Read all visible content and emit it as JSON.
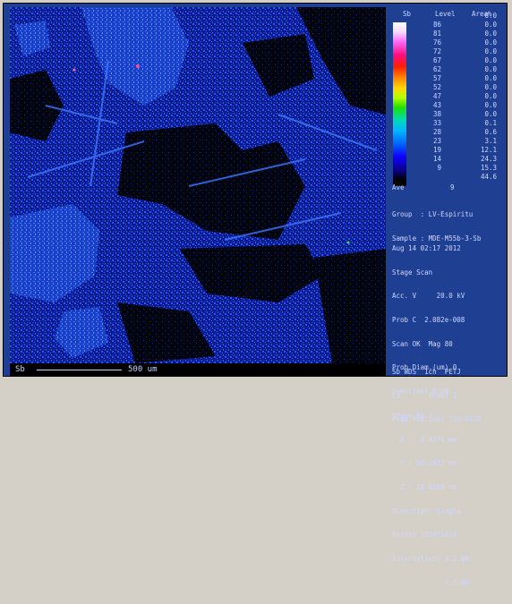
{
  "colorbar": {
    "element_label": "Sb",
    "level_header": "Level",
    "area_header": "Area%",
    "rows": [
      {
        "level": "",
        "area": "0.0"
      },
      {
        "level": "86",
        "area": "0.0"
      },
      {
        "level": "81",
        "area": "0.0"
      },
      {
        "level": "76",
        "area": "0.0"
      },
      {
        "level": "72",
        "area": "0.0"
      },
      {
        "level": "67",
        "area": "0.0"
      },
      {
        "level": "62",
        "area": "0.0"
      },
      {
        "level": "57",
        "area": "0.0"
      },
      {
        "level": "52",
        "area": "0.0"
      },
      {
        "level": "47",
        "area": "0.0"
      },
      {
        "level": "43",
        "area": "0.0"
      },
      {
        "level": "38",
        "area": "0.0"
      },
      {
        "level": "33",
        "area": "0.1"
      },
      {
        "level": "28",
        "area": "0.6"
      },
      {
        "level": "23",
        "area": "3.1"
      },
      {
        "level": "19",
        "area": "12.1"
      },
      {
        "level": "14",
        "area": "24.3"
      },
      {
        "level": "9",
        "area": "15.3"
      },
      {
        "level": "",
        "area": "44.6"
      }
    ],
    "ave_label": "Ave",
    "ave_value": "9"
  },
  "sample": {
    "group_line": "Group  : LV-Espiritu",
    "sample_line": "Sample : MDE-M55b-3-Sb"
  },
  "conditions": [
    "Aug 14 02:17 2012",
    "Stage Scan",
    "Acc. V     20.0 kV",
    "Prob C  2.082e-008",
    "Scan OK  Mag 80",
    "Prob Diam.(um) 0",
    "Dwell(ms) 0.00",
    "Stage No.1",
    "  X :  8.4274 mm",
    "  Y : 50.2922 mm",
    "  Z : 10.6500 mm",
    "Direction: Single",
    "Points 1024*1024",
    "Interval(um) X:2.00",
    "             Y:2.00"
  ],
  "spectrometer": [
    "Sb WDS  1ch  PETJ",
    "La       Order 1",
    "Peak Pos.(mm) 110.4410"
  ],
  "scalebar": {
    "element": "Sb",
    "length": "500 um"
  }
}
